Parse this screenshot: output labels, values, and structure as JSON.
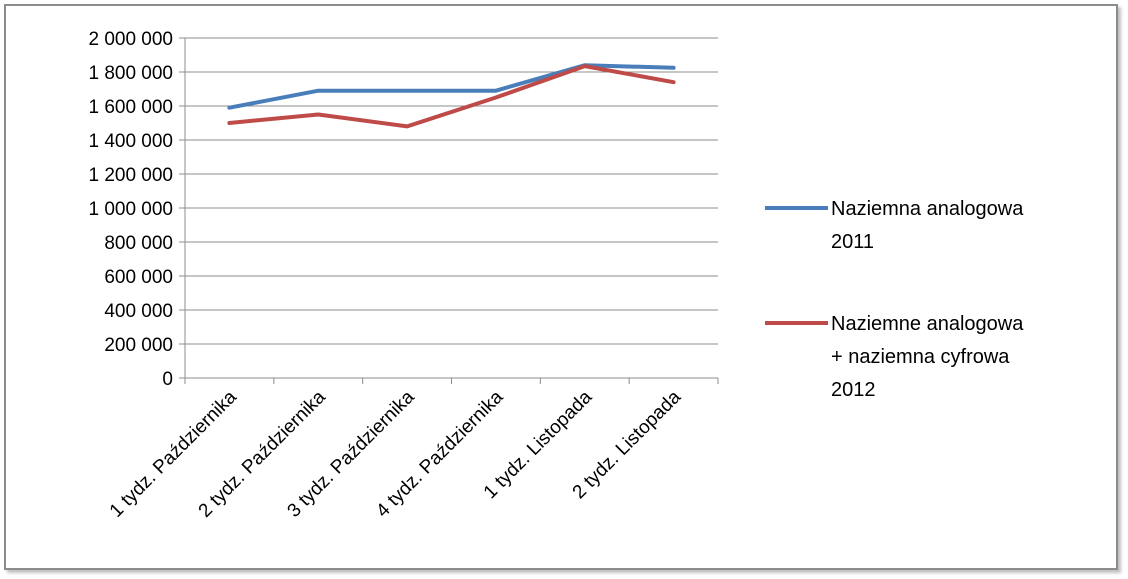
{
  "chart_data": {
    "type": "line",
    "title": "",
    "xlabel": "",
    "ylabel": "",
    "categories": [
      "1 tydz. Października",
      "2 tydz. Października",
      "3 tydz. Października",
      "4 tydz. Października",
      "1 tydz. Listopada",
      "2 tydz. Listopada"
    ],
    "ylim": [
      0,
      2000000
    ],
    "ytick_labels": [
      "0",
      "200 000",
      "400 000",
      "600 000",
      "800 000",
      "1 000 000",
      "1 200 000",
      "1 400 000",
      "1 600 000",
      "1 800 000",
      "2 000 000"
    ],
    "grid": "horizontal",
    "legend_position": "right",
    "series": [
      {
        "name_lines": [
          "Naziemna analogowa",
          "2011"
        ],
        "color": "#4a7ebb",
        "values": [
          1590000,
          1690000,
          1690000,
          1690000,
          1840000,
          1825000
        ]
      },
      {
        "name_lines": [
          "Naziemne analogowa",
          "+ naziemna cyfrowa",
          "2012"
        ],
        "color": "#be4b48",
        "values": [
          1500000,
          1550000,
          1480000,
          1650000,
          1835000,
          1740000
        ]
      }
    ]
  }
}
